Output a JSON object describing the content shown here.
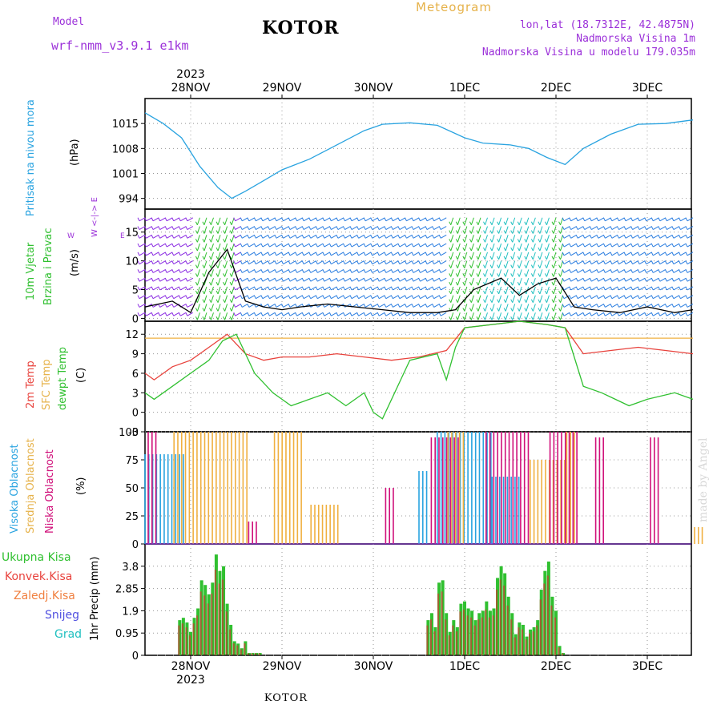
{
  "header": {
    "model_label": "Model",
    "model_name": "wrf-nmm_v3.9.1  e1km",
    "title": "KOTOR",
    "meteogram": "Meteogram",
    "lonlat": "lon,lat (18.7312E, 42.4875N)",
    "elevation": "Nadmorska Visina 1m",
    "model_elevation": "Nadmorska Visina u modelu 179.035m"
  },
  "top_axis": {
    "year": "2023",
    "dates": [
      "28NOV",
      "29NOV",
      "30NOV",
      "1DEC",
      "2DEC",
      "3DEC"
    ]
  },
  "bottom_axis": {
    "year": "2023",
    "dates": [
      "28NOV",
      "29NOV",
      "30NOV",
      "1DEC",
      "2DEC",
      "3DEC"
    ]
  },
  "footer": {
    "station": "KOTOR"
  },
  "watermark": "made by Angel",
  "colors": {
    "pressure": "#29a3e0",
    "red": "#e8423c",
    "orange": "#f0b040",
    "green": "#30c030",
    "purple": "#8a2be2",
    "magenta": "#d0107a",
    "blue": "#2a7de0",
    "teal": "#20c0c0"
  },
  "chart_data": [
    {
      "type": "line",
      "panel": "pressure",
      "ylabel": [
        "Pritisak na nivou mora",
        "(hPa)"
      ],
      "ylim": [
        991,
        1022
      ],
      "yticks": [
        994,
        1001,
        1008,
        1015
      ],
      "x_unit_note": "days since 28NOV 00:00",
      "series": [
        {
          "name": "Pritisak na nivou mora",
          "x": [
            -0.5,
            -0.3,
            -0.1,
            0.1,
            0.3,
            0.45,
            0.6,
            0.8,
            1.0,
            1.3,
            1.6,
            1.9,
            2.1,
            2.4,
            2.7,
            3.0,
            3.2,
            3.5,
            3.7,
            3.9,
            4.1,
            4.3,
            4.6,
            4.9,
            5.2,
            5.5
          ],
          "values": [
            1018,
            1015,
            1011,
            1003,
            997,
            994,
            996,
            999,
            1002,
            1005,
            1009,
            1013,
            1014.8,
            1015.2,
            1014.5,
            1011,
            1009.5,
            1009,
            1008,
            1005.5,
            1003.5,
            1008,
            1012,
            1014.8,
            1015,
            1016
          ]
        }
      ]
    },
    {
      "type": "line",
      "panel": "wind",
      "ylabel": [
        "10m Vjetar",
        "Brzina i Pravac",
        "(m/s)"
      ],
      "compass": "W <-|-> E",
      "ylim": [
        -0.5,
        19
      ],
      "yticks": [
        0,
        5,
        10,
        15
      ],
      "series": [
        {
          "name": "10m Vjetar Brzina",
          "x": [
            -0.5,
            -0.2,
            0.0,
            0.2,
            0.4,
            0.6,
            0.8,
            1.0,
            1.2,
            1.5,
            1.8,
            2.1,
            2.4,
            2.7,
            2.9,
            3.1,
            3.4,
            3.6,
            3.8,
            4.0,
            4.2,
            4.4,
            4.7,
            5.0,
            5.3,
            5.5
          ],
          "values": [
            2,
            3,
            1,
            8,
            12,
            3,
            2,
            1.5,
            2,
            2.5,
            2,
            1.5,
            1,
            1,
            1.5,
            5,
            7,
            4,
            6,
            7,
            2,
            1.5,
            1,
            2,
            1,
            1.5
          ]
        }
      ]
    },
    {
      "type": "line",
      "panel": "temperature",
      "ylabel": [
        "2m Temp",
        "SFC Temp",
        "dewpt Temp",
        "(C)"
      ],
      "ylim": [
        -3,
        14
      ],
      "yticks": [
        -3,
        0,
        3,
        6,
        9,
        12
      ],
      "series": [
        {
          "name": "2m Temp",
          "x": [
            -0.5,
            -0.4,
            -0.2,
            0.0,
            0.2,
            0.4,
            0.6,
            0.8,
            1.0,
            1.3,
            1.6,
            1.9,
            2.2,
            2.5,
            2.8,
            3.0,
            3.3,
            3.6,
            3.9,
            4.1,
            4.3,
            4.6,
            4.9,
            5.2,
            5.5
          ],
          "values": [
            6,
            5,
            7,
            8,
            10,
            12,
            9,
            8,
            8.5,
            8.5,
            9,
            8.5,
            8,
            8.5,
            9.5,
            13,
            13.5,
            14,
            13.5,
            13,
            9,
            9.5,
            10,
            9.5,
            9
          ]
        },
        {
          "name": "SFC Temp",
          "x": [
            -0.5,
            5.5
          ],
          "values": [
            11.4,
            11.4
          ]
        },
        {
          "name": "dewpt Temp",
          "x": [
            -0.5,
            -0.4,
            -0.2,
            0.0,
            0.2,
            0.35,
            0.5,
            0.7,
            0.9,
            1.1,
            1.3,
            1.5,
            1.7,
            1.9,
            2.0,
            2.1,
            2.4,
            2.7,
            2.8,
            2.9,
            3.0,
            3.3,
            3.6,
            3.9,
            4.1,
            4.3,
            4.5,
            4.8,
            5.0,
            5.3,
            5.5
          ],
          "values": [
            3,
            2,
            4,
            6,
            8,
            11,
            12,
            6,
            3,
            1,
            2,
            3,
            1,
            3,
            0,
            -1,
            8,
            9,
            5,
            10,
            13,
            13.5,
            14,
            13.5,
            13,
            4,
            3,
            1,
            2,
            3,
            2
          ]
        }
      ]
    },
    {
      "type": "bar",
      "panel": "cloud",
      "ylabel": [
        "Visoka Oblacnost",
        "Srednja Oblacnost",
        "Niska Oblacnost",
        "(%)"
      ],
      "ylim": [
        0,
        100
      ],
      "yticks": [
        0,
        25,
        50,
        75,
        100
      ],
      "series": [
        {
          "name": "Visoka Oblacnost",
          "segments": [
            [
              -0.5,
              -0.05,
              80
            ],
            [
              2.5,
              2.6,
              65
            ],
            [
              2.7,
              3.3,
              100
            ],
            [
              3.3,
              3.6,
              60
            ]
          ]
        },
        {
          "name": "Srednja Oblacnost",
          "segments": [
            [
              -0.2,
              0.6,
              100
            ],
            [
              0.9,
              1.2,
              100
            ],
            [
              1.3,
              1.6,
              35
            ],
            [
              2.8,
              3.0,
              100
            ],
            [
              3.7,
              4.1,
              75
            ],
            [
              4.1,
              4.2,
              100
            ],
            [
              5.5,
              5.6,
              15
            ]
          ]
        },
        {
          "name": "Niska Oblacnost",
          "segments": [
            [
              -0.5,
              -0.4,
              100
            ],
            [
              0.6,
              0.7,
              20
            ],
            [
              2.1,
              2.2,
              50
            ],
            [
              2.6,
              2.9,
              95
            ],
            [
              3.2,
              3.7,
              100
            ],
            [
              3.9,
              4.2,
              100
            ],
            [
              4.4,
              4.5,
              95
            ],
            [
              5.0,
              5.1,
              95
            ]
          ]
        }
      ]
    },
    {
      "type": "bar",
      "panel": "precip",
      "ylabel": [
        "1hr Precip (mm)"
      ],
      "legend": [
        "Ukupna Kisa",
        "Konvek.Kisa",
        "Zaledj.Kisa",
        "Snijeg",
        "Grad"
      ],
      "ylim": [
        0,
        4.75
      ],
      "yticks": [
        0,
        0.95,
        1.9,
        2.85,
        3.8
      ],
      "x_unit_note": "hourly bars, days since 28NOV 00:00",
      "series": [
        {
          "name": "Ukupna Kisa",
          "x": [
            -0.12,
            -0.08,
            -0.04,
            0.0,
            0.04,
            0.08,
            0.12,
            0.16,
            0.2,
            0.24,
            0.28,
            0.32,
            0.36,
            0.4,
            0.44,
            0.48,
            0.52,
            0.56,
            0.6,
            0.64,
            0.68,
            0.72,
            0.76,
            0.8,
            2.6,
            2.64,
            2.68,
            2.72,
            2.76,
            2.8,
            2.84,
            2.88,
            2.92,
            2.96,
            3.0,
            3.04,
            3.08,
            3.12,
            3.16,
            3.2,
            3.24,
            3.28,
            3.32,
            3.36,
            3.4,
            3.44,
            3.48,
            3.52,
            3.56,
            3.6,
            3.64,
            3.68,
            3.72,
            3.76,
            3.8,
            3.84,
            3.88,
            3.92,
            3.96,
            4.0,
            4.04,
            4.08,
            4.12
          ],
          "values": [
            1.5,
            1.6,
            1.4,
            1.0,
            1.6,
            2.0,
            3.2,
            3.0,
            2.6,
            3.1,
            4.3,
            3.6,
            3.8,
            2.2,
            1.3,
            0.6,
            0.5,
            0.3,
            0.6,
            0.1,
            0.1,
            0.1,
            0.1,
            0.0,
            1.5,
            1.8,
            1.2,
            3.1,
            3.2,
            1.8,
            1.0,
            1.5,
            1.2,
            2.2,
            2.3,
            2.0,
            1.9,
            1.5,
            1.8,
            1.9,
            2.3,
            1.9,
            2.0,
            3.3,
            3.8,
            3.5,
            2.5,
            1.8,
            0.9,
            1.4,
            1.3,
            0.8,
            1.1,
            1.2,
            1.5,
            2.8,
            3.6,
            4.0,
            2.5,
            1.9,
            0.4,
            0.1,
            0.0
          ]
        }
      ]
    }
  ]
}
